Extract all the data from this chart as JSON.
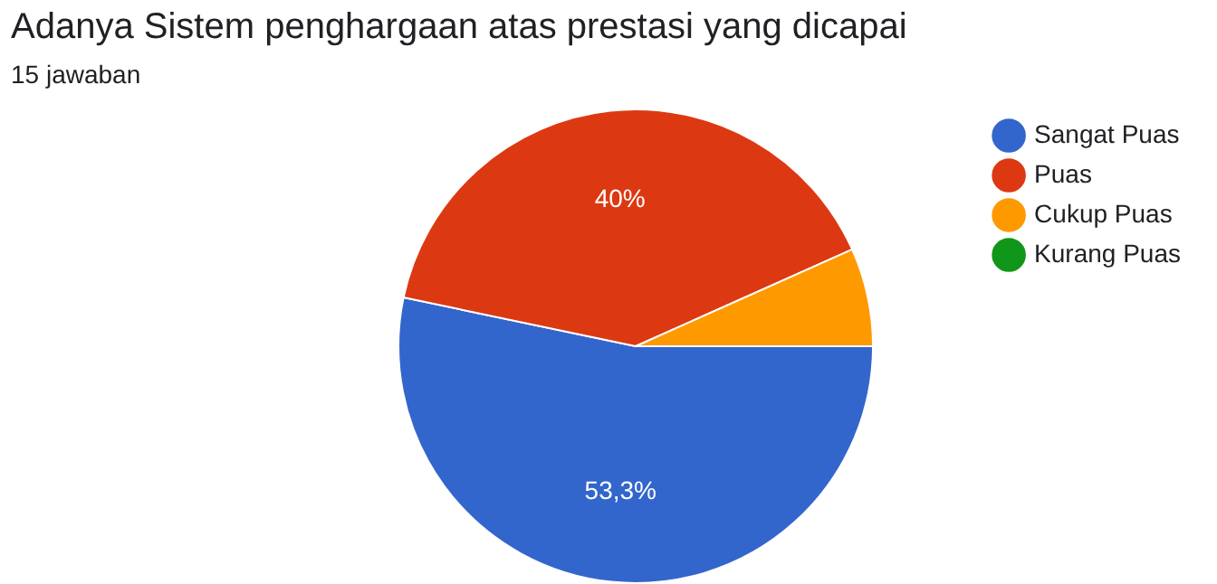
{
  "chart_data": {
    "type": "pie",
    "title": "Adanya Sistem penghargaan atas prestasi yang dicapai",
    "subtitle": "15 jawaban",
    "categories": [
      "Sangat Puas",
      "Puas",
      "Cukup Puas",
      "Kurang Puas"
    ],
    "values": [
      53.3,
      40,
      6.7,
      0
    ],
    "colors": [
      "#3366cc",
      "#dc3912",
      "#ff9900",
      "#109618"
    ],
    "value_labels": [
      "53,3%",
      "40%",
      null,
      null
    ],
    "legend": "right"
  }
}
